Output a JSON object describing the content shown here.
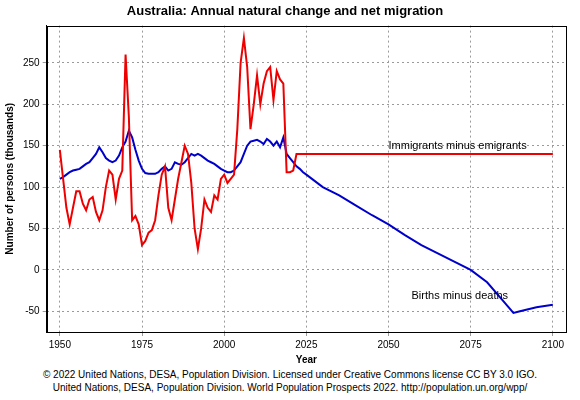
{
  "chart_data": {
    "type": "line",
    "title": "Australia: Annual natural change and net migration",
    "x_label": "Year",
    "y_label": "Number of persons (thousands)",
    "x": [
      1950,
      1951,
      1952,
      1953,
      1954,
      1955,
      1956,
      1957,
      1958,
      1959,
      1960,
      1961,
      1962,
      1963,
      1964,
      1965,
      1966,
      1967,
      1968,
      1969,
      1970,
      1971,
      1972,
      1973,
      1974,
      1975,
      1976,
      1977,
      1978,
      1979,
      1980,
      1981,
      1982,
      1983,
      1984,
      1985,
      1986,
      1987,
      1988,
      1989,
      1990,
      1991,
      1992,
      1993,
      1994,
      1995,
      1996,
      1997,
      1998,
      1999,
      2000,
      2001,
      2002,
      2003,
      2004,
      2005,
      2006,
      2007,
      2008,
      2009,
      2010,
      2011,
      2012,
      2013,
      2014,
      2015,
      2016,
      2017,
      2018,
      2019,
      2020,
      2021,
      2022,
      2023,
      2024,
      2025,
      2030,
      2035,
      2040,
      2045,
      2050,
      2055,
      2060,
      2065,
      2070,
      2075,
      2080,
      2085,
      2088,
      2090,
      2095,
      2100
    ],
    "series": [
      {
        "name": "Immigrants minus emigrants",
        "color": "#ee0000",
        "values": [
          145,
          110,
          75,
          55,
          75,
          95,
          95,
          80,
          72,
          85,
          88,
          70,
          60,
          72,
          100,
          120,
          115,
          85,
          110,
          120,
          260,
          185,
          60,
          65,
          55,
          30,
          35,
          45,
          48,
          60,
          90,
          115,
          125,
          75,
          60,
          85,
          110,
          130,
          150,
          140,
          105,
          50,
          25,
          50,
          85,
          75,
          70,
          90,
          85,
          110,
          115,
          105,
          110,
          115,
          170,
          250,
          280,
          245,
          170,
          200,
          235,
          200,
          225,
          240,
          245,
          205,
          240,
          230,
          225,
          118,
          118,
          120,
          140,
          140,
          140,
          140,
          140,
          140,
          140,
          140,
          140,
          140,
          140,
          140,
          140,
          140,
          140,
          140,
          140,
          140,
          140,
          140
        ]
      },
      {
        "name": "Births minus deaths",
        "color": "#0000cc",
        "values": [
          110,
          112,
          115,
          118,
          120,
          121,
          122,
          125,
          128,
          130,
          135,
          140,
          148,
          142,
          135,
          132,
          130,
          132,
          138,
          148,
          155,
          168,
          160,
          145,
          132,
          122,
          117,
          116,
          116,
          116,
          118,
          122,
          125,
          120,
          122,
          130,
          128,
          127,
          130,
          135,
          140,
          138,
          140,
          138,
          135,
          132,
          130,
          128,
          125,
          122,
          120,
          118,
          118,
          120,
          125,
          130,
          140,
          150,
          155,
          156,
          157,
          155,
          152,
          158,
          155,
          150,
          155,
          148,
          160,
          140,
          135,
          130,
          125,
          122,
          118,
          115,
          100,
          90,
          78,
          66,
          55,
          42,
          30,
          20,
          10,
          0,
          -15,
          -38,
          -52,
          -50,
          -45,
          -42
        ]
      }
    ],
    "annotations": [
      {
        "text": "Immigrants minus emigrants",
        "x": 2050,
        "y": 143
      },
      {
        "text": "Births minus deaths",
        "x": 2057,
        "y": -38
      }
    ],
    "xlim": [
      1946,
      2104
    ],
    "xticks": [
      1950,
      1975,
      2000,
      2025,
      2050,
      2075,
      2100
    ],
    "ylim": [
      -75,
      295
    ],
    "yticks": [
      -50,
      0,
      50,
      100,
      150,
      200,
      250
    ],
    "grid": true,
    "source": [
      "© 2022 United Nations, DESA, Population Division. Licensed under Creative Commons license CC BY 3.0 IGO.",
      "United Nations, DESA, Population Division. World Population Prospects 2022. http://population.un.org/wpp/"
    ]
  }
}
